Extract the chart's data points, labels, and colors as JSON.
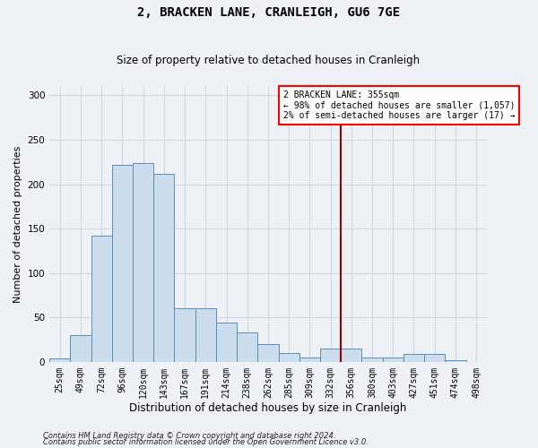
{
  "title": "2, BRACKEN LANE, CRANLEIGH, GU6 7GE",
  "subtitle": "Size of property relative to detached houses in Cranleigh",
  "xlabel": "Distribution of detached houses by size in Cranleigh",
  "ylabel": "Number of detached properties",
  "footnote1": "Contains HM Land Registry data © Crown copyright and database right 2024.",
  "footnote2": "Contains public sector information licensed under the Open Government Licence v3.0.",
  "bin_labels": [
    "25sqm",
    "49sqm",
    "72sqm",
    "96sqm",
    "120sqm",
    "143sqm",
    "167sqm",
    "191sqm",
    "214sqm",
    "238sqm",
    "262sqm",
    "285sqm",
    "309sqm",
    "332sqm",
    "356sqm",
    "380sqm",
    "403sqm",
    "427sqm",
    "451sqm",
    "474sqm",
    "498sqm"
  ],
  "bar_heights": [
    4,
    30,
    142,
    222,
    224,
    212,
    60,
    60,
    44,
    33,
    20,
    10,
    5,
    15,
    15,
    5,
    5,
    9,
    9,
    2,
    0
  ],
  "bar_color": "#ccdded",
  "bar_edge_color": "#5b8db8",
  "grid_color": "#d0d8e0",
  "vline_x_index": 14,
  "vline_color": "#990000",
  "annotation_text_line1": "2 BRACKEN LANE: 355sqm",
  "annotation_text_line2": "← 98% of detached houses are smaller (1,057)",
  "annotation_text_line3": "2% of semi-detached houses are larger (17) →",
  "ylim": [
    0,
    310
  ],
  "yticks": [
    0,
    50,
    100,
    150,
    200,
    250,
    300
  ],
  "background_color": "#eef2f7",
  "title_fontsize": 10,
  "subtitle_fontsize": 8.5,
  "ylabel_fontsize": 8,
  "xlabel_fontsize": 8.5,
  "tick_fontsize": 7,
  "footnote_fontsize": 6
}
